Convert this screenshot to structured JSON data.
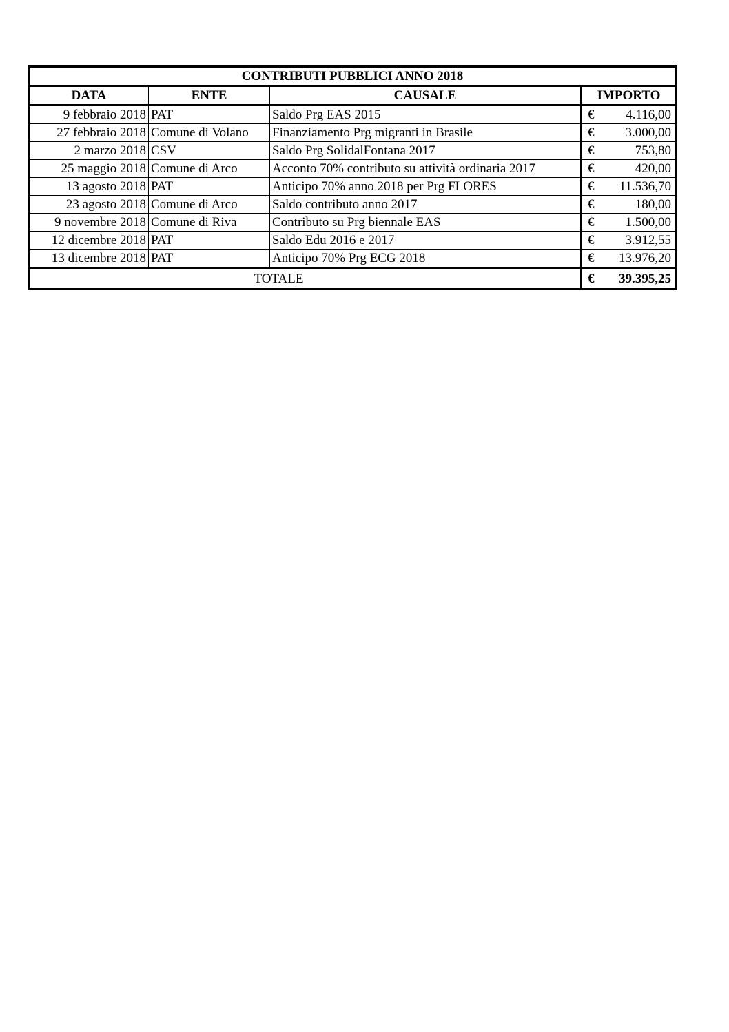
{
  "title": "CONTRIBUTI PUBBLICI ANNO 2018",
  "headers": {
    "data": "DATA",
    "ente": "ENTE",
    "causale": "CAUSALE",
    "importo": "IMPORTO"
  },
  "currency": "€",
  "rows": [
    {
      "data": "9 febbraio 2018",
      "ente": "PAT",
      "causale": "Saldo Prg EAS 2015",
      "importo": "4.116,00"
    },
    {
      "data": "27 febbraio 2018",
      "ente": "Comune di Volano",
      "causale": "Finanziamento Prg migranti in Brasile",
      "importo": "3.000,00"
    },
    {
      "data": "2 marzo 2018",
      "ente": "CSV",
      "causale": "Saldo Prg SolidalFontana 2017",
      "importo": "753,80"
    },
    {
      "data": "25 maggio 2018",
      "ente": "Comune di Arco",
      "causale": "Acconto 70% contributo su attività ordinaria 2017",
      "importo": "420,00"
    },
    {
      "data": "13 agosto 2018",
      "ente": "PAT",
      "causale": "Anticipo 70% anno 2018 per Prg FLORES",
      "importo": "11.536,70"
    },
    {
      "data": "23 agosto 2018",
      "ente": "Comune di Arco",
      "causale": "Saldo contributo anno 2017",
      "importo": "180,00"
    },
    {
      "data": "9 novembre 2018",
      "ente": "Comune di Riva",
      "causale": "Contributo su Prg biennale EAS",
      "importo": "1.500,00"
    },
    {
      "data": "12 dicembre 2018",
      "ente": "PAT",
      "causale": "Saldo Edu 2016 e 2017",
      "importo": "3.912,55"
    },
    {
      "data": "13 dicembre 2018",
      "ente": "PAT",
      "causale": "Anticipo 70% Prg ECG 2018",
      "importo": "13.976,20"
    }
  ],
  "total": {
    "label": "TOTALE",
    "importo": "39.395,25"
  }
}
